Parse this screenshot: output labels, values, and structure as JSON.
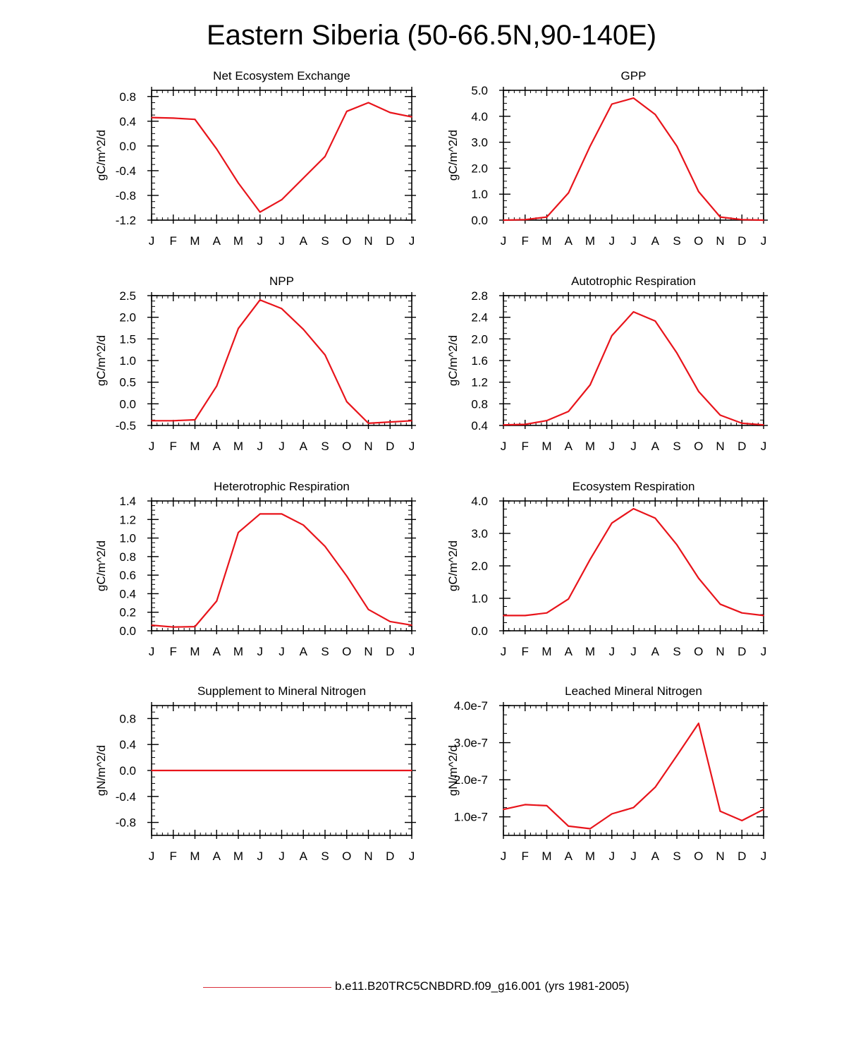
{
  "title": "Eastern Siberia (50-66.5N,90-140E)",
  "legend": {
    "label": "b.e11.B20TRC5CNBDRD.f09_g16.001 (yrs 1981-2005)",
    "color": "#d9303c"
  },
  "series_color": "#e8141b",
  "chart_data": [
    {
      "type": "line",
      "title": "Net Ecosystem Exchange",
      "xlabel": "",
      "ylabel": "gC/m^2/d",
      "categories": [
        "J",
        "F",
        "M",
        "A",
        "M",
        "J",
        "J",
        "A",
        "S",
        "O",
        "N",
        "D",
        "J"
      ],
      "ylim": [
        -1.2,
        0.9
      ],
      "yticks": [
        -1.2,
        -0.8,
        -0.4,
        0.0,
        0.4,
        0.8
      ],
      "ytick_labels": [
        "-1.2",
        "-0.8",
        "-0.4",
        "0.0",
        "0.4",
        "0.8"
      ],
      "values": [
        0.46,
        0.45,
        0.43,
        -0.05,
        -0.6,
        -1.07,
        -0.87,
        -0.52,
        -0.17,
        0.56,
        0.7,
        0.54,
        0.47
      ]
    },
    {
      "type": "line",
      "title": "GPP",
      "xlabel": "",
      "ylabel": "gC/m^2/d",
      "categories": [
        "J",
        "F",
        "M",
        "A",
        "M",
        "J",
        "J",
        "A",
        "S",
        "O",
        "N",
        "D",
        "J"
      ],
      "ylim": [
        0.0,
        5.0
      ],
      "yticks": [
        0,
        1,
        2,
        3,
        4,
        5
      ],
      "ytick_labels": [
        "0.0",
        "1.0",
        "2.0",
        "3.0",
        "4.0",
        "5.0"
      ],
      "values": [
        0.0,
        0.02,
        0.12,
        1.05,
        2.85,
        4.47,
        4.7,
        4.07,
        2.85,
        1.1,
        0.12,
        0.02,
        0.0
      ]
    },
    {
      "type": "line",
      "title": "NPP",
      "xlabel": "",
      "ylabel": "gC/m^2/d",
      "categories": [
        "J",
        "F",
        "M",
        "A",
        "M",
        "J",
        "J",
        "A",
        "S",
        "O",
        "N",
        "D",
        "J"
      ],
      "ylim": [
        -0.5,
        2.5
      ],
      "yticks": [
        -0.5,
        0.0,
        0.5,
        1.0,
        1.5,
        2.0,
        2.5
      ],
      "ytick_labels": [
        "-0.5",
        "0.0",
        "0.5",
        "1.0",
        "1.5",
        "2.0",
        "2.5"
      ],
      "values": [
        -0.39,
        -0.39,
        -0.37,
        0.41,
        1.74,
        2.4,
        2.2,
        1.72,
        1.13,
        0.05,
        -0.45,
        -0.42,
        -0.39
      ]
    },
    {
      "type": "line",
      "title": "Autotrophic Respiration",
      "xlabel": "",
      "ylabel": "gC/m^2/d",
      "categories": [
        "J",
        "F",
        "M",
        "A",
        "M",
        "J",
        "J",
        "A",
        "S",
        "O",
        "N",
        "D",
        "J"
      ],
      "ylim": [
        0.4,
        2.8
      ],
      "yticks": [
        0.4,
        0.8,
        1.2,
        1.6,
        2.0,
        2.4,
        2.8
      ],
      "ytick_labels": [
        "0.4",
        "0.8",
        "1.2",
        "1.6",
        "2.0",
        "2.4",
        "2.8"
      ],
      "values": [
        0.41,
        0.42,
        0.49,
        0.66,
        1.15,
        2.06,
        2.5,
        2.33,
        1.74,
        1.03,
        0.59,
        0.44,
        0.41
      ]
    },
    {
      "type": "line",
      "title": "Heterotrophic Respiration",
      "xlabel": "",
      "ylabel": "gC/m^2/d",
      "categories": [
        "J",
        "F",
        "M",
        "A",
        "M",
        "J",
        "J",
        "A",
        "S",
        "O",
        "N",
        "D",
        "J"
      ],
      "ylim": [
        0.0,
        1.4
      ],
      "yticks": [
        0,
        0.2,
        0.4,
        0.6,
        0.8,
        1.0,
        1.2,
        1.4
      ],
      "ytick_labels": [
        "0.0",
        "0.2",
        "0.4",
        "0.6",
        "0.8",
        "1.0",
        "1.2",
        "1.4"
      ],
      "values": [
        0.06,
        0.04,
        0.045,
        0.32,
        1.06,
        1.26,
        1.26,
        1.14,
        0.91,
        0.59,
        0.23,
        0.1,
        0.06
      ]
    },
    {
      "type": "line",
      "title": "Ecosystem Respiration",
      "xlabel": "",
      "ylabel": "gC/m^2/d",
      "categories": [
        "J",
        "F",
        "M",
        "A",
        "M",
        "J",
        "J",
        "A",
        "S",
        "O",
        "N",
        "D",
        "J"
      ],
      "ylim": [
        0.0,
        4.0
      ],
      "yticks": [
        0,
        1,
        2,
        3,
        4
      ],
      "ytick_labels": [
        "0.0",
        "1.0",
        "2.0",
        "3.0",
        "4.0"
      ],
      "values": [
        0.47,
        0.47,
        0.55,
        0.98,
        2.2,
        3.32,
        3.76,
        3.47,
        2.65,
        1.62,
        0.82,
        0.55,
        0.47
      ]
    },
    {
      "type": "line",
      "title": "Supplement to Mineral Nitrogen",
      "xlabel": "",
      "ylabel": "gN/m^2/d",
      "categories": [
        "J",
        "F",
        "M",
        "A",
        "M",
        "J",
        "J",
        "A",
        "S",
        "O",
        "N",
        "D",
        "J"
      ],
      "ylim": [
        -1.0,
        1.0
      ],
      "yticks": [
        -0.8,
        -0.4,
        0.0,
        0.4,
        0.8
      ],
      "ytick_labels": [
        "-0.8",
        "-0.4",
        "0.0",
        "0.4",
        "0.8"
      ],
      "values": [
        0,
        0,
        0,
        0,
        0,
        0,
        0,
        0,
        0,
        0,
        0,
        0,
        0
      ]
    },
    {
      "type": "line",
      "title": "Leached Mineral Nitrogen",
      "xlabel": "",
      "ylabel": "gN/m^2/d",
      "categories": [
        "J",
        "F",
        "M",
        "A",
        "M",
        "J",
        "J",
        "A",
        "S",
        "O",
        "N",
        "D",
        "J"
      ],
      "ylim": [
        5e-08,
        4e-07
      ],
      "yticks": [
        1e-07,
        2e-07,
        3e-07,
        4e-07
      ],
      "ytick_labels": [
        "1.0e-7",
        "2.0e-7",
        "3.0e-7",
        "4.0e-7"
      ],
      "values": [
        1.2e-07,
        1.33e-07,
        1.3e-07,
        7.5e-08,
        6.8e-08,
        1.08e-07,
        1.25e-07,
        1.8e-07,
        2.65e-07,
        3.52e-07,
        1.15e-07,
        9e-08,
        1.2e-07
      ]
    }
  ]
}
